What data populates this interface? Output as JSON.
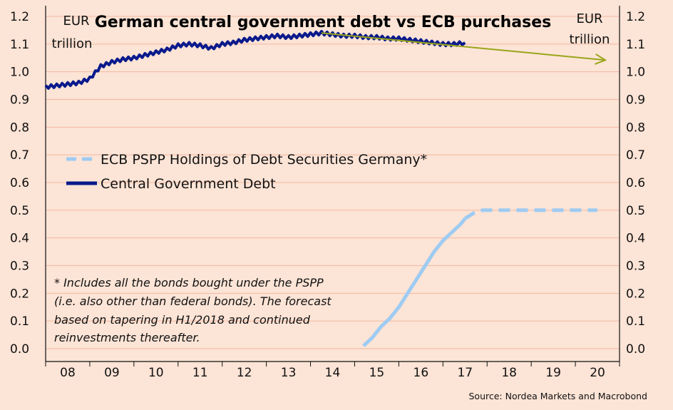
{
  "chart_data": {
    "type": "line",
    "title": "German central government debt vs ECB purchases",
    "y_unit_left": [
      "EUR",
      "trillion"
    ],
    "y_unit_right": [
      "EUR",
      "trillion"
    ],
    "ylim": [
      0,
      1.2
    ],
    "y_ticks": [
      "0.0",
      "0.1",
      "0.2",
      "0.3",
      "0.4",
      "0.5",
      "0.6",
      "0.7",
      "0.8",
      "0.9",
      "1.0",
      "1.1",
      "1.2"
    ],
    "xlim": [
      2008,
      2021
    ],
    "x_tick_labels": [
      "08",
      "09",
      "10",
      "11",
      "12",
      "13",
      "14",
      "15",
      "16",
      "17",
      "18",
      "19",
      "20"
    ],
    "grid": "horizontal",
    "legend_placement": "middle-left",
    "series": [
      {
        "name": "ECB PSPP Holdings of Debt Securities Germany*",
        "color": "#9ecbf2",
        "style": "solid-then-dashed",
        "x": [
          2015.2,
          2015.4,
          2015.6,
          2015.8,
          2016.0,
          2016.2,
          2016.4,
          2016.6,
          2016.8,
          2017.0,
          2017.2,
          2017.4,
          2017.5,
          2017.7,
          2017.9,
          2018.0,
          2018.5,
          2019.0,
          2019.5,
          2020.0,
          2020.5
        ],
        "values": [
          0.01,
          0.04,
          0.08,
          0.11,
          0.15,
          0.2,
          0.25,
          0.3,
          0.35,
          0.39,
          0.42,
          0.45,
          0.47,
          0.49,
          0.5,
          0.5,
          0.5,
          0.5,
          0.5,
          0.5,
          0.5
        ]
      },
      {
        "name": "Central Government Debt",
        "color": "#0a1a8c",
        "style": "solid",
        "x": [
          2008.0,
          2008.25,
          2008.5,
          2008.75,
          2009.0,
          2009.25,
          2009.5,
          2009.75,
          2010.0,
          2010.25,
          2010.5,
          2010.75,
          2011.0,
          2011.25,
          2011.5,
          2011.75,
          2012.0,
          2012.25,
          2012.5,
          2012.75,
          2013.0,
          2013.25,
          2013.5,
          2013.75,
          2014.0,
          2014.25,
          2014.5,
          2014.75,
          2015.0,
          2015.25,
          2015.5,
          2015.75,
          2016.0,
          2016.25,
          2016.5,
          2016.75,
          2017.0,
          2017.25,
          2017.5
        ],
        "values": [
          0.945,
          0.95,
          0.955,
          0.96,
          0.975,
          1.02,
          1.035,
          1.045,
          1.05,
          1.06,
          1.07,
          1.08,
          1.095,
          1.1,
          1.095,
          1.085,
          1.1,
          1.105,
          1.115,
          1.12,
          1.125,
          1.13,
          1.125,
          1.13,
          1.135,
          1.14,
          1.135,
          1.13,
          1.13,
          1.125,
          1.125,
          1.12,
          1.12,
          1.115,
          1.11,
          1.105,
          1.1,
          1.1,
          1.105
        ]
      }
    ],
    "annotations": [
      {
        "type": "arrow",
        "color": "#9aa51a",
        "from": [
          2014.25,
          1.14
        ],
        "to": [
          2021.0,
          1.05
        ]
      }
    ]
  },
  "legend": {
    "pspp_label": "ECB PSPP Holdings of Debt Securities Germany*",
    "debt_label": "Central Government Debt"
  },
  "footnote": [
    "* Includes all the bonds bought under the PSPP",
    "(i.e. also other than federal bonds). The forecast",
    "based on tapering in H1/2018 and continued",
    "reinvestments thereafter."
  ],
  "source": "Source: Nordea Markets and Macrobond"
}
